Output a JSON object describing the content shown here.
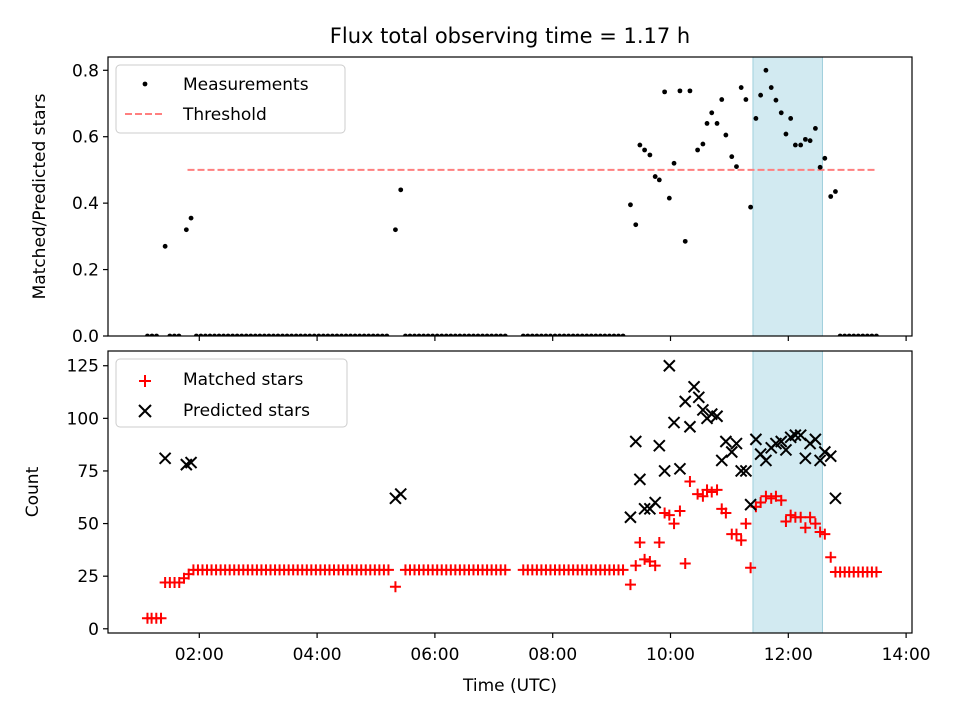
{
  "chart_data": {
    "type": "scatter",
    "title": "Flux total observing time = 1.17 h",
    "xlabel": "Time (UTC)",
    "xlim": [
      0.45,
      14.1
    ],
    "x_ticks": [
      2,
      4,
      6,
      8,
      10,
      12,
      14
    ],
    "x_tick_labels": [
      "02:00",
      "04:00",
      "06:00",
      "08:00",
      "10:00",
      "12:00",
      "14:00"
    ],
    "highlight_band": {
      "start": 11.4,
      "end": 12.58,
      "color": "#add8e6"
    },
    "colors": {
      "measurements": "#000000",
      "threshold": "#ff7f7f",
      "matched": "#ff0000",
      "predicted": "#000000"
    },
    "top": {
      "ylabel": "Matched/Predicted stars",
      "ylim": [
        0,
        0.84
      ],
      "y_ticks": [
        0.0,
        0.2,
        0.4,
        0.6,
        0.8
      ],
      "y_tick_labels": [
        "0.0",
        "0.2",
        "0.4",
        "0.6",
        "0.8"
      ],
      "legend": {
        "position": "top-left",
        "measurements": "Measurements",
        "threshold": "Threshold"
      },
      "threshold": {
        "value": 0.5,
        "x_start": 1.8,
        "x_end": 13.5
      },
      "measurements": [
        [
          1.42,
          0.27
        ],
        [
          1.78,
          0.32
        ],
        [
          1.86,
          0.355
        ],
        [
          5.33,
          0.32
        ],
        [
          5.42,
          0.44
        ],
        [
          9.32,
          0.395
        ],
        [
          9.41,
          0.335
        ],
        [
          9.48,
          0.575
        ],
        [
          9.56,
          0.56
        ],
        [
          9.65,
          0.545
        ],
        [
          9.74,
          0.48
        ],
        [
          9.81,
          0.47
        ],
        [
          9.9,
          0.735
        ],
        [
          9.98,
          0.415
        ],
        [
          10.06,
          0.52
        ],
        [
          10.16,
          0.738
        ],
        [
          10.25,
          0.285
        ],
        [
          10.33,
          0.738
        ],
        [
          10.46,
          0.56
        ],
        [
          10.55,
          0.578
        ],
        [
          10.62,
          0.64
        ],
        [
          10.7,
          0.672
        ],
        [
          10.79,
          0.64
        ],
        [
          10.87,
          0.712
        ],
        [
          10.94,
          0.605
        ],
        [
          11.04,
          0.54
        ],
        [
          11.12,
          0.51
        ],
        [
          11.2,
          0.748
        ],
        [
          11.28,
          0.712
        ],
        [
          11.36,
          0.388
        ],
        [
          11.45,
          0.655
        ],
        [
          11.53,
          0.725
        ],
        [
          11.62,
          0.8
        ],
        [
          11.71,
          0.748
        ],
        [
          11.79,
          0.71
        ],
        [
          11.88,
          0.672
        ],
        [
          11.96,
          0.608
        ],
        [
          12.04,
          0.655
        ],
        [
          12.12,
          0.575
        ],
        [
          12.21,
          0.575
        ],
        [
          12.29,
          0.592
        ],
        [
          12.37,
          0.588
        ],
        [
          12.46,
          0.625
        ],
        [
          12.54,
          0.508
        ],
        [
          12.62,
          0.535
        ],
        [
          12.72,
          0.42
        ],
        [
          12.8,
          0.435
        ]
      ],
      "zero_ranges": [
        [
          1.12,
          1.35
        ],
        [
          1.5,
          1.72
        ],
        [
          1.95,
          5.25
        ],
        [
          5.5,
          7.25
        ],
        [
          7.5,
          9.2
        ],
        [
          12.88,
          13.5
        ]
      ],
      "zero_step": 0.077
    },
    "bottom": {
      "ylabel": "Count",
      "ylim": [
        -2,
        132
      ],
      "y_ticks": [
        0,
        25,
        50,
        75,
        100,
        125
      ],
      "y_tick_labels": [
        "0",
        "25",
        "50",
        "75",
        "100",
        "125"
      ],
      "legend": {
        "position": "top-left",
        "matched": "Matched stars",
        "predicted": "Predicted stars"
      },
      "matched_points": [
        [
          1.12,
          5
        ],
        [
          1.19,
          5
        ],
        [
          1.27,
          5
        ],
        [
          1.35,
          5
        ],
        [
          1.42,
          22
        ],
        [
          1.5,
          22
        ],
        [
          1.58,
          22
        ],
        [
          1.66,
          22
        ],
        [
          1.74,
          24
        ],
        [
          1.82,
          26
        ],
        [
          5.33,
          20
        ],
        [
          9.32,
          21
        ],
        [
          9.41,
          30
        ],
        [
          9.48,
          41
        ],
        [
          9.56,
          33
        ],
        [
          9.65,
          32
        ],
        [
          9.74,
          30
        ],
        [
          9.81,
          41
        ],
        [
          9.9,
          55
        ],
        [
          9.98,
          54
        ],
        [
          10.06,
          50
        ],
        [
          10.16,
          56
        ],
        [
          10.25,
          31
        ],
        [
          10.33,
          70
        ],
        [
          10.46,
          64
        ],
        [
          10.55,
          63
        ],
        [
          10.62,
          66
        ],
        [
          10.7,
          65
        ],
        [
          10.79,
          66
        ],
        [
          10.87,
          57
        ],
        [
          10.94,
          55
        ],
        [
          11.04,
          45
        ],
        [
          11.12,
          45
        ],
        [
          11.2,
          42
        ],
        [
          11.28,
          50
        ],
        [
          11.36,
          29
        ],
        [
          11.45,
          58
        ],
        [
          11.53,
          60
        ],
        [
          11.62,
          63
        ],
        [
          11.71,
          62
        ],
        [
          11.79,
          63
        ],
        [
          11.88,
          61
        ],
        [
          11.96,
          51
        ],
        [
          12.04,
          54
        ],
        [
          12.12,
          53
        ],
        [
          12.21,
          53
        ],
        [
          12.29,
          48
        ],
        [
          12.37,
          53
        ],
        [
          12.46,
          50
        ],
        [
          12.54,
          46
        ],
        [
          12.62,
          45
        ],
        [
          12.72,
          34
        ],
        [
          12.8,
          27
        ]
      ],
      "matched_flat": [
        {
          "range": [
            1.9,
            5.25
          ],
          "value": 28
        },
        {
          "range": [
            5.5,
            7.25
          ],
          "value": 28
        },
        {
          "range": [
            7.5,
            9.2
          ],
          "value": 28
        },
        {
          "range": [
            12.88,
            13.5
          ],
          "value": 27
        }
      ],
      "flat_step": 0.077,
      "predicted_points": [
        [
          1.42,
          81
        ],
        [
          1.78,
          78
        ],
        [
          1.86,
          79
        ],
        [
          5.33,
          62
        ],
        [
          5.42,
          64
        ],
        [
          9.32,
          53
        ],
        [
          9.41,
          89
        ],
        [
          9.48,
          71
        ],
        [
          9.56,
          57
        ],
        [
          9.65,
          57
        ],
        [
          9.74,
          60
        ],
        [
          9.81,
          87
        ],
        [
          9.9,
          75
        ],
        [
          9.98,
          125
        ],
        [
          10.06,
          98
        ],
        [
          10.16,
          76
        ],
        [
          10.25,
          108
        ],
        [
          10.33,
          96
        ],
        [
          10.4,
          115
        ],
        [
          10.48,
          110
        ],
        [
          10.55,
          104
        ],
        [
          10.62,
          100
        ],
        [
          10.7,
          102
        ],
        [
          10.79,
          101
        ],
        [
          10.87,
          80
        ],
        [
          10.94,
          89
        ],
        [
          11.04,
          84
        ],
        [
          11.12,
          88
        ],
        [
          11.2,
          75
        ],
        [
          11.28,
          75
        ],
        [
          11.36,
          59
        ],
        [
          11.45,
          90
        ],
        [
          11.53,
          83
        ],
        [
          11.62,
          80
        ],
        [
          11.71,
          86
        ],
        [
          11.79,
          88
        ],
        [
          11.88,
          89
        ],
        [
          11.96,
          85
        ],
        [
          12.04,
          91
        ],
        [
          12.12,
          92
        ],
        [
          12.21,
          92
        ],
        [
          12.29,
          81
        ],
        [
          12.37,
          88
        ],
        [
          12.46,
          90
        ],
        [
          12.54,
          80
        ],
        [
          12.62,
          84
        ],
        [
          12.72,
          82
        ],
        [
          12.8,
          62
        ]
      ]
    }
  }
}
